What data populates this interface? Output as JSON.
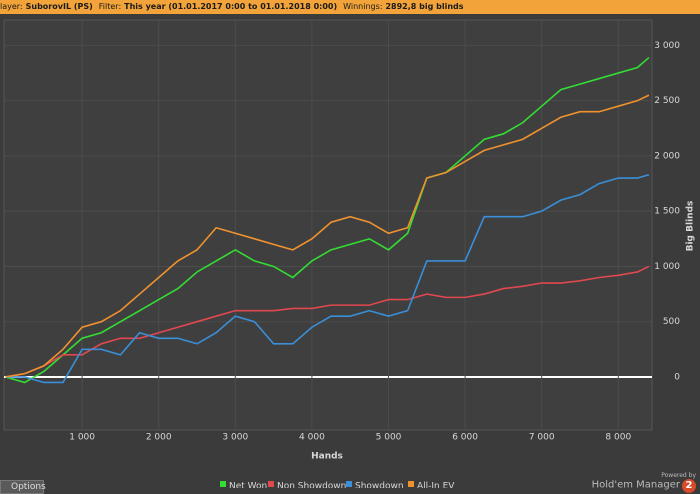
{
  "header": {
    "player_label": "layer:",
    "player": "SuborovIL (PS)",
    "filter_label": "Filter:",
    "filter": "This year (01.01.2017 0:00 to 01.01.2018 0:00)",
    "winnings_label": "Winnings:",
    "winnings": "2892,8 big blinds"
  },
  "footer": {
    "options": "Options",
    "powered": "Powered by",
    "brand": "Hold'em Manager",
    "version": "2"
  },
  "chart_data": {
    "type": "line",
    "x_label": "Hands",
    "y_label": "Big Blinds",
    "x": [
      0,
      250,
      500,
      750,
      1000,
      1250,
      1500,
      1750,
      2000,
      2250,
      2500,
      2750,
      3000,
      3250,
      3500,
      3750,
      4000,
      4250,
      4500,
      4750,
      5000,
      5250,
      5500,
      5750,
      6000,
      6250,
      6500,
      6750,
      7000,
      7250,
      7500,
      7750,
      8000,
      8250,
      8400
    ],
    "series": [
      {
        "name": "Net Won",
        "color": "#33dd33",
        "values": [
          0,
          -50,
          50,
          200,
          350,
          400,
          500,
          600,
          700,
          800,
          950,
          1050,
          1150,
          1050,
          1000,
          900,
          1050,
          1150,
          1200,
          1250,
          1150,
          1300,
          1800,
          1850,
          2000,
          2150,
          2200,
          2300,
          2450,
          2600,
          2650,
          2700,
          2750,
          2800,
          2890
        ]
      },
      {
        "name": "Non Showdown",
        "color": "#e0484f",
        "values": [
          0,
          30,
          100,
          200,
          200,
          300,
          350,
          350,
          400,
          450,
          500,
          550,
          600,
          600,
          600,
          620,
          620,
          650,
          650,
          650,
          700,
          700,
          750,
          720,
          720,
          750,
          800,
          820,
          850,
          850,
          870,
          900,
          920,
          950,
          1000
        ]
      },
      {
        "name": "Showdown",
        "color": "#3a8fd8",
        "values": [
          0,
          0,
          -50,
          -50,
          250,
          250,
          200,
          400,
          350,
          350,
          300,
          400,
          550,
          500,
          300,
          300,
          450,
          550,
          550,
          600,
          550,
          600,
          1050,
          1050,
          1050,
          1450,
          1450,
          1450,
          1500,
          1600,
          1650,
          1750,
          1800,
          1800,
          1830
        ]
      },
      {
        "name": "All-In EV",
        "color": "#f0922e",
        "values": [
          0,
          30,
          100,
          250,
          450,
          500,
          600,
          750,
          900,
          1050,
          1150,
          1350,
          1300,
          1250,
          1200,
          1150,
          1250,
          1400,
          1450,
          1400,
          1300,
          1350,
          1800,
          1850,
          1950,
          2050,
          2100,
          2150,
          2250,
          2350,
          2400,
          2400,
          2450,
          2500,
          2550
        ]
      }
    ],
    "xlim": [
      -20,
      8440
    ],
    "ylim": [
      -480,
      3230
    ],
    "xticks": [
      {
        "value": 1000,
        "label": "1 000"
      },
      {
        "value": 2000,
        "label": "2 000"
      },
      {
        "value": 3000,
        "label": "3 000"
      },
      {
        "value": 4000,
        "label": "4 000"
      },
      {
        "value": 5000,
        "label": "5 000"
      },
      {
        "value": 6000,
        "label": "6 000"
      },
      {
        "value": 7000,
        "label": "7 000"
      },
      {
        "value": 8000,
        "label": "8 000"
      }
    ],
    "yticks": [
      0,
      500,
      {
        "value": 1000,
        "label": "1 000"
      },
      {
        "value": 1500,
        "label": "1 500"
      },
      {
        "value": 2000,
        "label": "2 000"
      },
      {
        "value": 2500,
        "label": "2 500"
      },
      {
        "value": 3000,
        "label": "3 000"
      }
    ],
    "grid": true,
    "legend": "bottom"
  }
}
